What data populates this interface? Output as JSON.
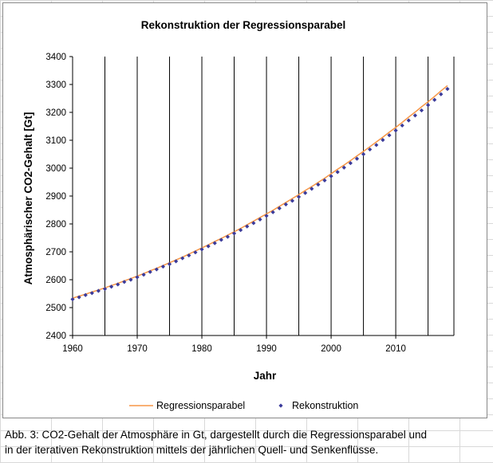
{
  "chart_data": {
    "type": "line",
    "title": "Rekonstruktion der Regressionsparabel",
    "xlabel": "Jahr",
    "ylabel": "Atmosphärischer CO2-Gehalt [Gt]",
    "xlim": [
      1960,
      2019
    ],
    "ylim": [
      2400,
      3400
    ],
    "x_ticks": [
      1960,
      1970,
      1980,
      1990,
      2000,
      2010
    ],
    "x_gridlines": [
      1960,
      1965,
      1970,
      1975,
      1980,
      1985,
      1990,
      1995,
      2000,
      2005,
      2010,
      2015,
      2019
    ],
    "y_ticks": [
      2400,
      2500,
      2600,
      2700,
      2800,
      2900,
      3000,
      3100,
      3200,
      3300,
      3400
    ],
    "grid": "vertical",
    "legend_position": "bottom",
    "series": [
      {
        "name": "Regressionsparabel",
        "style": "line",
        "color": "#f79646",
        "x": [
          1960,
          1961,
          1962,
          1963,
          1964,
          1965,
          1966,
          1967,
          1968,
          1969,
          1970,
          1971,
          1972,
          1973,
          1974,
          1975,
          1976,
          1977,
          1978,
          1979,
          1980,
          1981,
          1982,
          1983,
          1984,
          1985,
          1986,
          1987,
          1988,
          1989,
          1990,
          1991,
          1992,
          1993,
          1994,
          1995,
          1996,
          1997,
          1998,
          1999,
          2000,
          2001,
          2002,
          2003,
          2004,
          2005,
          2006,
          2007,
          2008,
          2009,
          2010,
          2011,
          2012,
          2013,
          2014,
          2015,
          2016,
          2017,
          2018
        ],
        "y": [
          2534,
          2541,
          2548,
          2556,
          2563,
          2571,
          2579,
          2587,
          2596,
          2604,
          2613,
          2622,
          2632,
          2641,
          2651,
          2661,
          2671,
          2681,
          2692,
          2703,
          2714,
          2725,
          2737,
          2748,
          2760,
          2772,
          2784,
          2797,
          2810,
          2823,
          2836,
          2849,
          2863,
          2877,
          2891,
          2905,
          2920,
          2934,
          2949,
          2964,
          2980,
          2996,
          3011,
          3027,
          3044,
          3060,
          3077,
          3094,
          3111,
          3129,
          3146,
          3164,
          3183,
          3201,
          3220,
          3238,
          3257,
          3277,
          3296
        ]
      },
      {
        "name": "Rekonstruktion",
        "style": "markers",
        "color": "#3b3b9b",
        "x": [
          1960,
          1961,
          1962,
          1963,
          1964,
          1965,
          1966,
          1967,
          1968,
          1969,
          1970,
          1971,
          1972,
          1973,
          1974,
          1975,
          1976,
          1977,
          1978,
          1979,
          1980,
          1981,
          1982,
          1983,
          1984,
          1985,
          1986,
          1987,
          1988,
          1989,
          1990,
          1991,
          1992,
          1993,
          1994,
          1995,
          1996,
          1997,
          1998,
          1999,
          2000,
          2001,
          2002,
          2003,
          2004,
          2005,
          2006,
          2007,
          2008,
          2009,
          2010,
          2011,
          2012,
          2013,
          2014,
          2015,
          2016,
          2017,
          2018
        ],
        "y": [
          2530,
          2537,
          2545,
          2552,
          2560,
          2567,
          2575,
          2583,
          2592,
          2600,
          2609,
          2618,
          2628,
          2637,
          2647,
          2656,
          2666,
          2677,
          2687,
          2698,
          2709,
          2720,
          2731,
          2743,
          2754,
          2766,
          2778,
          2791,
          2803,
          2816,
          2829,
          2842,
          2856,
          2870,
          2883,
          2897,
          2911,
          2926,
          2941,
          2956,
          2971,
          2986,
          3002,
          3018,
          3034,
          3050,
          3067,
          3083,
          3101,
          3118,
          3135,
          3153,
          3171,
          3189,
          3207,
          3226,
          3245,
          3265,
          3284
        ]
      }
    ]
  },
  "caption": {
    "line1": "Abb. 3: CO2-Gehalt der Atmosphäre in Gt,  dargestellt durch die Regressionsparabel und",
    "line2": "in der iterativen Rekonstruktion  mittels der jährlichen Quell- und Senkenflüsse."
  }
}
